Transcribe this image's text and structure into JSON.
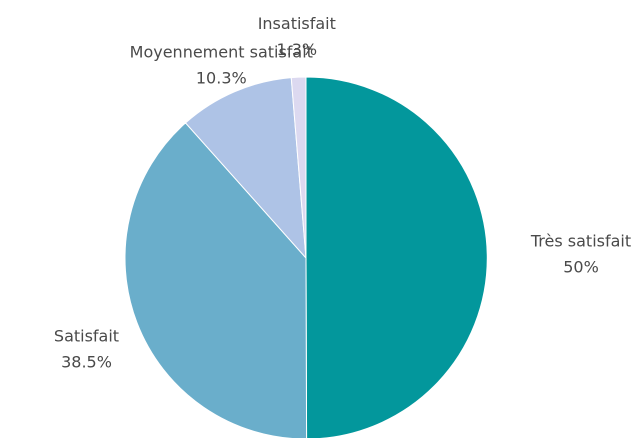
{
  "chart_data": {
    "type": "pie",
    "title": "",
    "categories": [
      "Très satisfait",
      "Satisfait",
      "Moyennement satisfait",
      "Insatisfait"
    ],
    "values": [
      50,
      38.5,
      10.3,
      1.3
    ],
    "value_labels": [
      "50%",
      "38.5%",
      "10.3%",
      "1.3%"
    ],
    "colors": [
      "#03979c",
      "#6aaecb",
      "#aec3e6",
      "#dcd9f0"
    ],
    "start_angle_deg": 0,
    "direction": "clockwise",
    "legend": "none"
  }
}
